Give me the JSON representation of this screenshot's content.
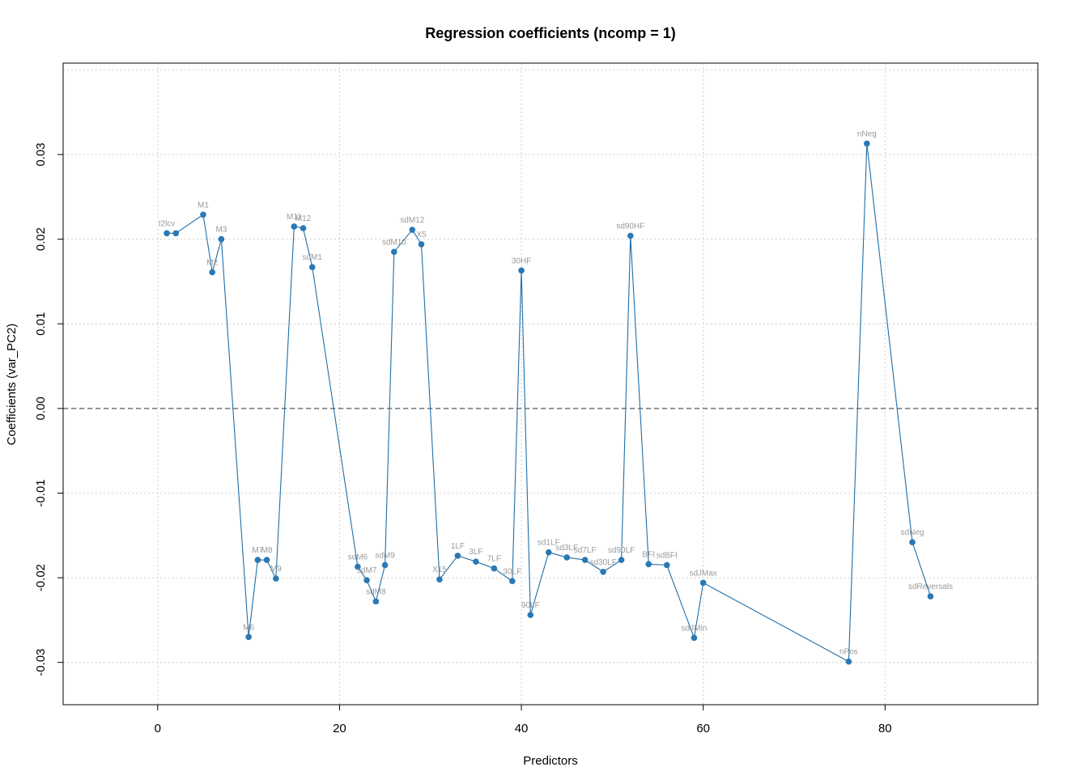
{
  "chart_data": {
    "type": "line",
    "title": "Regression coefficients (ncomp = 1)",
    "xlabel": "Predictors",
    "ylabel": "Coefficients (var_PC2)",
    "xlim": [
      -10.4,
      96.8
    ],
    "ylim": [
      -0.035,
      0.0408
    ],
    "x_ticks": [
      0,
      20,
      40,
      60,
      80
    ],
    "x_tick_labels": [
      "0",
      "20",
      "40",
      "60",
      "80"
    ],
    "y_ticks": [
      -0.03,
      -0.02,
      -0.01,
      0,
      0.01,
      0.02,
      0.03
    ],
    "y_tick_labels": [
      "-0.03",
      "-0.02",
      "-0.01",
      "0.00",
      "0.01",
      "0.02",
      "0.03"
    ],
    "grid": true,
    "grid_x": [
      0,
      20,
      40,
      60,
      80
    ],
    "grid_y": [
      -0.03,
      -0.02,
      -0.01,
      0,
      0.01,
      0.02,
      0.03,
      0.04
    ],
    "reference_line": {
      "y": 0,
      "style": "dashed"
    },
    "colors": {
      "series": "#1f6fa8",
      "point": "#2a78b4",
      "point_label": "#9a9a9a",
      "grid": "#d0d0d0"
    },
    "series": [
      {
        "points": [
          {
            "x": 1,
            "y": 0.0207,
            "label": "I2lcv"
          },
          {
            "x": 2,
            "y": 0.0207,
            "label": ""
          },
          {
            "x": 5,
            "y": 0.0229,
            "label": "M1"
          },
          {
            "x": 6,
            "y": 0.0161,
            "label": "M2"
          },
          {
            "x": 7,
            "y": 0.02,
            "label": "M3"
          },
          {
            "x": 10,
            "y": -0.027,
            "label": "M6"
          },
          {
            "x": 11,
            "y": -0.0179,
            "label": "M7"
          },
          {
            "x": 12,
            "y": -0.0179,
            "label": "M8"
          },
          {
            "x": 13,
            "y": -0.0201,
            "label": "M9"
          },
          {
            "x": 15,
            "y": 0.0215,
            "label": "M11"
          },
          {
            "x": 16,
            "y": 0.0213,
            "label": "M12"
          },
          {
            "x": 17,
            "y": 0.0167,
            "label": "sdM1"
          },
          {
            "x": 22,
            "y": -0.0187,
            "label": "sdM6"
          },
          {
            "x": 23,
            "y": -0.0203,
            "label": "sdM7"
          },
          {
            "x": 24,
            "y": -0.0228,
            "label": "sdM8"
          },
          {
            "x": 25,
            "y": -0.0185,
            "label": "sdM9"
          },
          {
            "x": 26,
            "y": 0.0185,
            "label": "sdM10"
          },
          {
            "x": 28,
            "y": 0.0211,
            "label": "sdM12"
          },
          {
            "x": 29,
            "y": 0.0194,
            "label": "X5"
          },
          {
            "x": 31,
            "y": -0.0202,
            "label": "X15"
          },
          {
            "x": 33,
            "y": -0.0174,
            "label": "1LF"
          },
          {
            "x": 35,
            "y": -0.0181,
            "label": "3LF"
          },
          {
            "x": 37,
            "y": -0.0189,
            "label": "7LF"
          },
          {
            "x": 39,
            "y": -0.0204,
            "label": "30LF"
          },
          {
            "x": 40,
            "y": 0.0163,
            "label": "30HF"
          },
          {
            "x": 41,
            "y": -0.0244,
            "label": "90LF"
          },
          {
            "x": 43,
            "y": -0.017,
            "label": "sd1LF"
          },
          {
            "x": 45,
            "y": -0.0176,
            "label": "sd3LF"
          },
          {
            "x": 47,
            "y": -0.0179,
            "label": "sd7LF"
          },
          {
            "x": 49,
            "y": -0.0193,
            "label": "sd30LF"
          },
          {
            "x": 51,
            "y": -0.0179,
            "label": "sd90LF"
          },
          {
            "x": 52,
            "y": 0.0204,
            "label": "sd90HF"
          },
          {
            "x": 54,
            "y": -0.0184,
            "label": "BFI"
          },
          {
            "x": 56,
            "y": -0.0185,
            "label": "sdBFI"
          },
          {
            "x": 59,
            "y": -0.0271,
            "label": "sdJMin"
          },
          {
            "x": 60,
            "y": -0.0206,
            "label": "sdJMax"
          },
          {
            "x": 76,
            "y": -0.0299,
            "label": "nPos"
          },
          {
            "x": 78,
            "y": 0.0313,
            "label": "nNeg"
          },
          {
            "x": 83,
            "y": -0.0158,
            "label": "sdNeg"
          },
          {
            "x": 85,
            "y": -0.0222,
            "label": "sdReversals"
          }
        ]
      }
    ]
  }
}
